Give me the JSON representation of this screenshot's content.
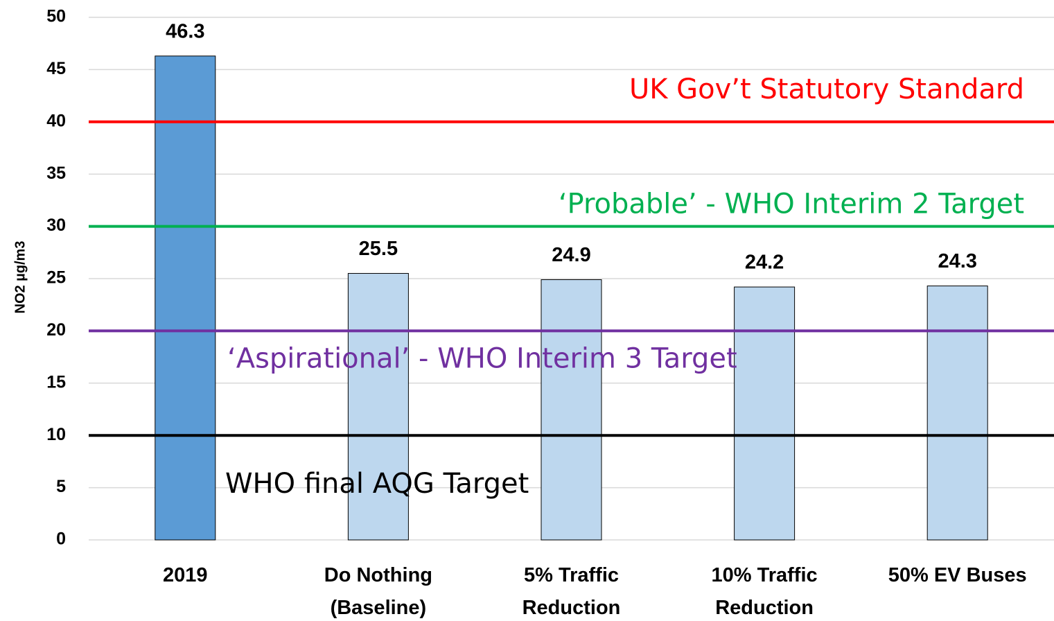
{
  "chart_data": {
    "type": "bar",
    "y_label": "NO2 µg/m3",
    "categories": [
      "2019",
      "Do Nothing (Baseline)",
      "5% Traffic Reduction",
      "10% Traffic Reduction",
      "50% EV Buses"
    ],
    "values": [
      46.3,
      25.5,
      24.9,
      24.2,
      24.3
    ],
    "value_labels": [
      "46.3",
      "25.5",
      "24.9",
      "24.2",
      "24.3"
    ],
    "colors": [
      "#5b9bd5",
      "#bdd7ee",
      "#bdd7ee",
      "#bdd7ee",
      "#bdd7ee"
    ],
    "ylim": [
      0,
      50
    ],
    "yticks": [
      0,
      5,
      10,
      15,
      20,
      25,
      30,
      35,
      40,
      45,
      50
    ],
    "grid": true,
    "reference_lines": [
      {
        "value": 40,
        "label": "UK Gov’t Statutory Standard",
        "color": "#ff0000"
      },
      {
        "value": 30,
        "label": "‘Probable’ - WHO Interim 2 Target",
        "color": "#00b050"
      },
      {
        "value": 20,
        "label": "‘Aspirational’ - WHO Interim 3 Target",
        "color": "#7030a0"
      },
      {
        "value": 10,
        "label": "WHO final AQG Target",
        "color": "#000000"
      }
    ]
  }
}
